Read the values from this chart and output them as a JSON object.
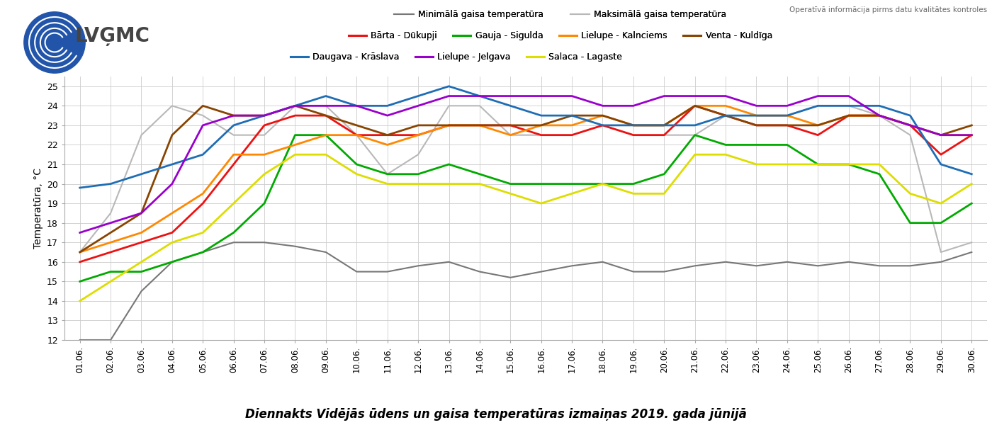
{
  "title": "Diennakts Vidējās ūdens un gaisa temperatūras izmaiņas 2019. gada jūnijā",
  "ylabel": "Temperatūra, °C",
  "header_text": "Operatīvā informācija pirms datu kvalitātes kontroles",
  "xlabels": [
    "01.06.",
    "02.06.",
    "03.06.",
    "04.06.",
    "05.06.",
    "06.06.",
    "07.06.",
    "08.06.",
    "09.06.",
    "10.06.",
    "11.06.",
    "12.06.",
    "13.06.",
    "14.06.",
    "15.06.",
    "16.06.",
    "17.06.",
    "18.06.",
    "19.06.",
    "20.06.",
    "21.06.",
    "22.06.",
    "23.06.",
    "24.06.",
    "25.06.",
    "26.06.",
    "27.06.",
    "28.06.",
    "29.06.",
    "30.06."
  ],
  "ylim": [
    12,
    25.5
  ],
  "yticks": [
    12,
    13,
    14,
    15,
    16,
    17,
    18,
    19,
    20,
    21,
    22,
    23,
    24,
    25
  ],
  "series": {
    "Minimālā gaisa temperatūra": {
      "color": "#777777",
      "linewidth": 1.5,
      "values": [
        12.0,
        12.0,
        14.5,
        16.0,
        16.5,
        17.0,
        17.0,
        16.8,
        16.5,
        15.5,
        15.5,
        15.8,
        16.0,
        15.5,
        15.2,
        15.5,
        15.8,
        16.0,
        15.5,
        15.5,
        15.8,
        16.0,
        15.8,
        16.0,
        15.8,
        16.0,
        15.8,
        15.8,
        16.0,
        16.5
      ]
    },
    "Maksimālā gaisa temperatūra": {
      "color": "#b8b8b8",
      "linewidth": 1.5,
      "values": [
        16.5,
        18.5,
        22.5,
        24.0,
        23.5,
        22.5,
        22.5,
        24.0,
        24.0,
        22.5,
        20.5,
        21.5,
        24.0,
        24.0,
        22.5,
        22.5,
        22.5,
        23.0,
        22.5,
        22.5,
        22.5,
        23.5,
        23.5,
        23.5,
        24.0,
        24.0,
        23.5,
        22.5,
        16.5,
        17.0
      ]
    },
    "Bārta - Dūkupji": {
      "color": "#ee1111",
      "linewidth": 2.0,
      "values": [
        16.0,
        16.5,
        17.0,
        17.5,
        19.0,
        21.0,
        23.0,
        23.5,
        23.5,
        22.5,
        22.5,
        22.5,
        23.0,
        23.0,
        23.0,
        22.5,
        22.5,
        23.0,
        22.5,
        22.5,
        24.0,
        23.5,
        23.0,
        23.0,
        22.5,
        23.5,
        23.5,
        23.0,
        21.5,
        22.5
      ]
    },
    "Gauja - Sigulda": {
      "color": "#00aa00",
      "linewidth": 2.0,
      "values": [
        15.0,
        15.5,
        15.5,
        16.0,
        16.5,
        17.5,
        19.0,
        22.5,
        22.5,
        21.0,
        20.5,
        20.5,
        21.0,
        20.5,
        20.0,
        20.0,
        20.0,
        20.0,
        20.0,
        20.5,
        22.5,
        22.0,
        22.0,
        22.0,
        21.0,
        21.0,
        20.5,
        18.0,
        18.0,
        19.0
      ]
    },
    "Lielupe - Kalnciems": {
      "color": "#ff8800",
      "linewidth": 2.0,
      "values": [
        16.5,
        17.0,
        17.5,
        18.5,
        19.5,
        21.5,
        21.5,
        22.0,
        22.5,
        22.5,
        22.0,
        22.5,
        23.0,
        23.0,
        22.5,
        23.0,
        23.0,
        23.5,
        23.0,
        23.0,
        24.0,
        24.0,
        23.5,
        23.5,
        23.0,
        23.5,
        23.5,
        23.0,
        22.5,
        22.5
      ]
    },
    "Venta - Kuldīga": {
      "color": "#884400",
      "linewidth": 2.0,
      "values": [
        16.5,
        17.5,
        18.5,
        22.5,
        24.0,
        23.5,
        23.5,
        24.0,
        23.5,
        23.0,
        22.5,
        23.0,
        23.0,
        23.0,
        23.0,
        23.0,
        23.5,
        23.5,
        23.0,
        23.0,
        24.0,
        23.5,
        23.0,
        23.0,
        23.0,
        23.5,
        23.5,
        23.0,
        22.5,
        23.0
      ]
    },
    "Daugava - Krāslava": {
      "color": "#1e6db5",
      "linewidth": 2.0,
      "values": [
        19.8,
        20.0,
        20.5,
        21.0,
        21.5,
        23.0,
        23.5,
        24.0,
        24.5,
        24.0,
        24.0,
        24.5,
        25.0,
        24.5,
        24.0,
        23.5,
        23.5,
        23.0,
        23.0,
        23.0,
        23.0,
        23.5,
        23.5,
        23.5,
        24.0,
        24.0,
        24.0,
        23.5,
        21.0,
        20.5
      ]
    },
    "Lielupe - Jelgava": {
      "color": "#9900cc",
      "linewidth": 2.0,
      "values": [
        17.5,
        18.0,
        18.5,
        20.0,
        23.0,
        23.5,
        23.5,
        24.0,
        24.0,
        24.0,
        23.5,
        24.0,
        24.5,
        24.5,
        24.5,
        24.5,
        24.5,
        24.0,
        24.0,
        24.5,
        24.5,
        24.5,
        24.0,
        24.0,
        24.5,
        24.5,
        23.5,
        23.0,
        22.5,
        22.5
      ]
    },
    "Salaca - Lagaste": {
      "color": "#dddd00",
      "linewidth": 2.0,
      "values": [
        14.0,
        15.0,
        16.0,
        17.0,
        17.5,
        19.0,
        20.5,
        21.5,
        21.5,
        20.5,
        20.0,
        20.0,
        20.0,
        20.0,
        19.5,
        19.0,
        19.5,
        20.0,
        19.5,
        19.5,
        21.5,
        21.5,
        21.0,
        21.0,
        21.0,
        21.0,
        21.0,
        19.5,
        19.0,
        20.0
      ]
    }
  },
  "legend_row1": [
    "Minimālā gaisa temperatūra",
    "Maksimālā gaisa temperatūra"
  ],
  "legend_row2": [
    "Bārta - Dūkupji",
    "Gauja - Sigulda",
    "Lielupe - Kalnciems",
    "Venta - Kuldīga"
  ],
  "legend_row3": [
    "Daugava - Krāslava",
    "Lielupe - Jelgava",
    "Salaca - Lagaste"
  ],
  "logo_color": "#2255aa",
  "lvgmc_text_color": "#444444",
  "axis_label_color": "#000000"
}
